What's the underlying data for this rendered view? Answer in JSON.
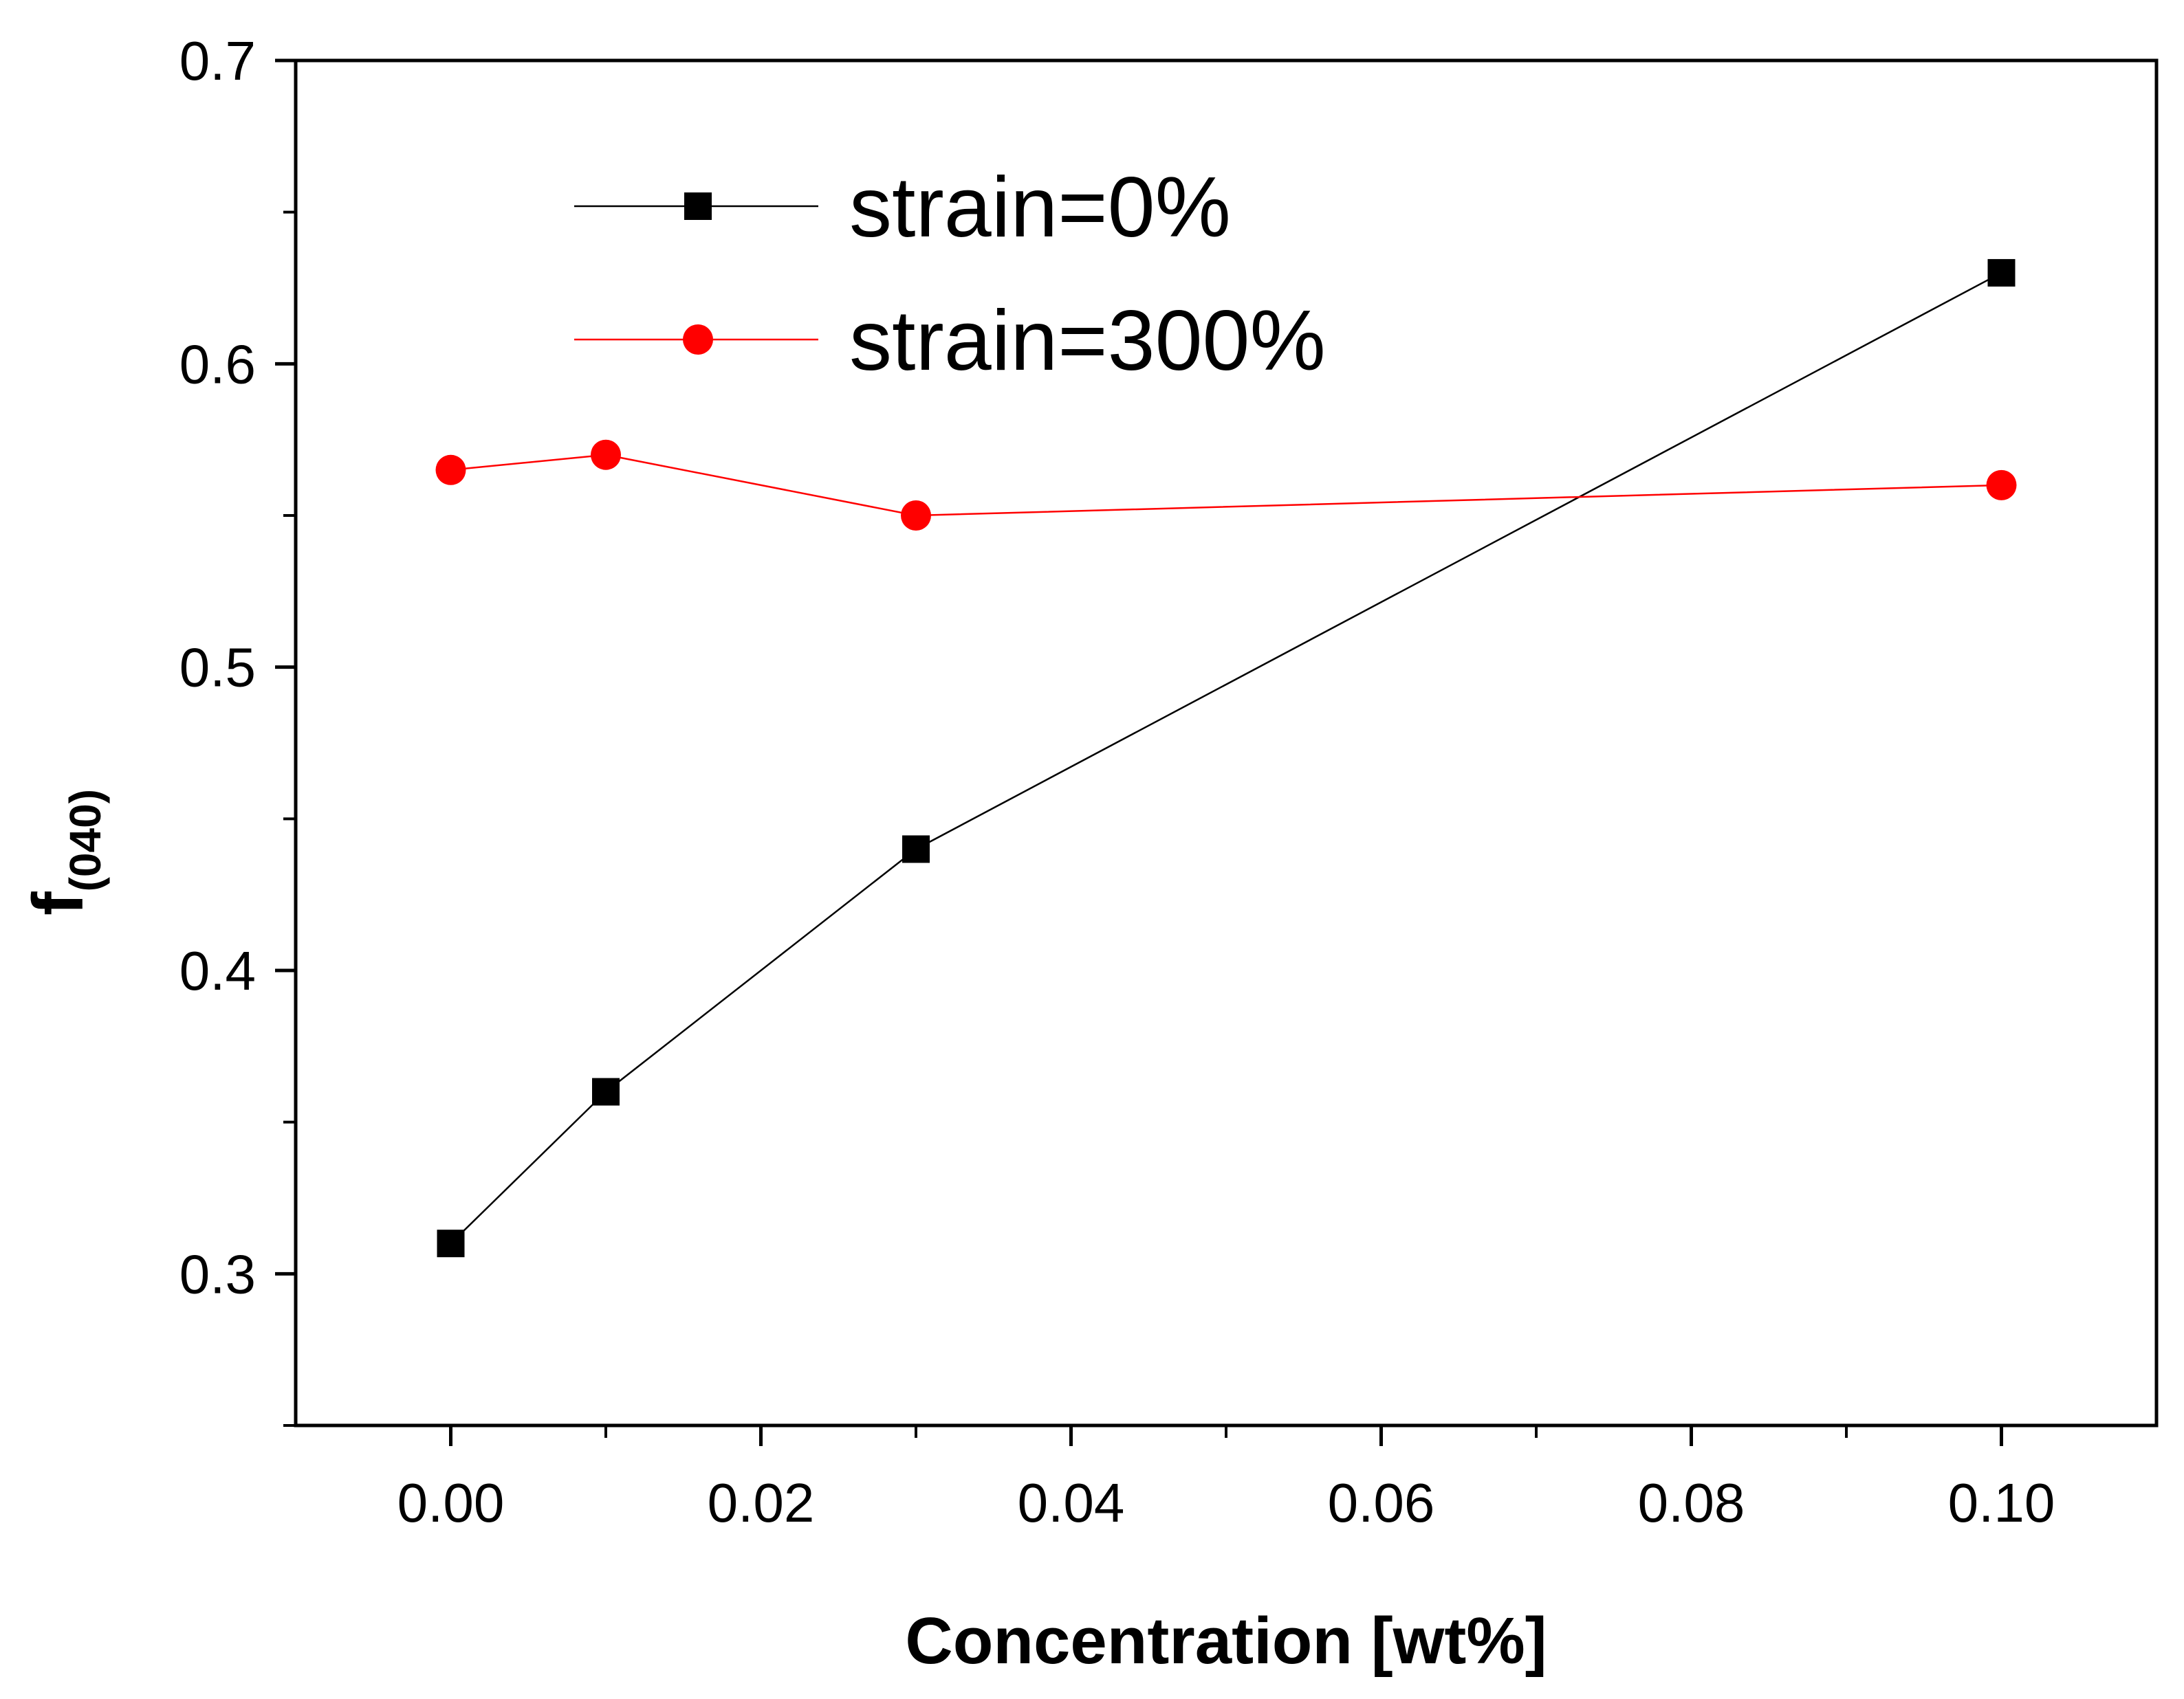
{
  "chart_data": {
    "type": "line",
    "title": "",
    "xlabel": "Concentration [wt%]",
    "ylabel_main": "f",
    "ylabel_sub": "(040)",
    "xlim": [
      -0.01,
      0.11
    ],
    "ylim": [
      0.25,
      0.7
    ],
    "x_ticks": [
      0.0,
      0.02,
      0.04,
      0.06,
      0.08,
      0.1
    ],
    "x_tick_labels": [
      "0.00",
      "0.02",
      "0.04",
      "0.06",
      "0.08",
      "0.10"
    ],
    "y_ticks": [
      0.3,
      0.4,
      0.5,
      0.6,
      0.7
    ],
    "y_tick_labels": [
      "0.3",
      "0.4",
      "0.5",
      "0.6",
      "0.7"
    ],
    "grid": false,
    "legend_position": "top-center",
    "series": [
      {
        "name": "strain=0%",
        "color": "#000000",
        "marker": "square",
        "x": [
          0.0,
          0.01,
          0.03,
          0.1
        ],
        "y": [
          0.31,
          0.36,
          0.44,
          0.63
        ]
      },
      {
        "name": "strain=300%",
        "color": "#ff0000",
        "marker": "circle",
        "x": [
          0.0,
          0.01,
          0.03,
          0.1
        ],
        "y": [
          0.565,
          0.57,
          0.55,
          0.56
        ]
      }
    ]
  }
}
